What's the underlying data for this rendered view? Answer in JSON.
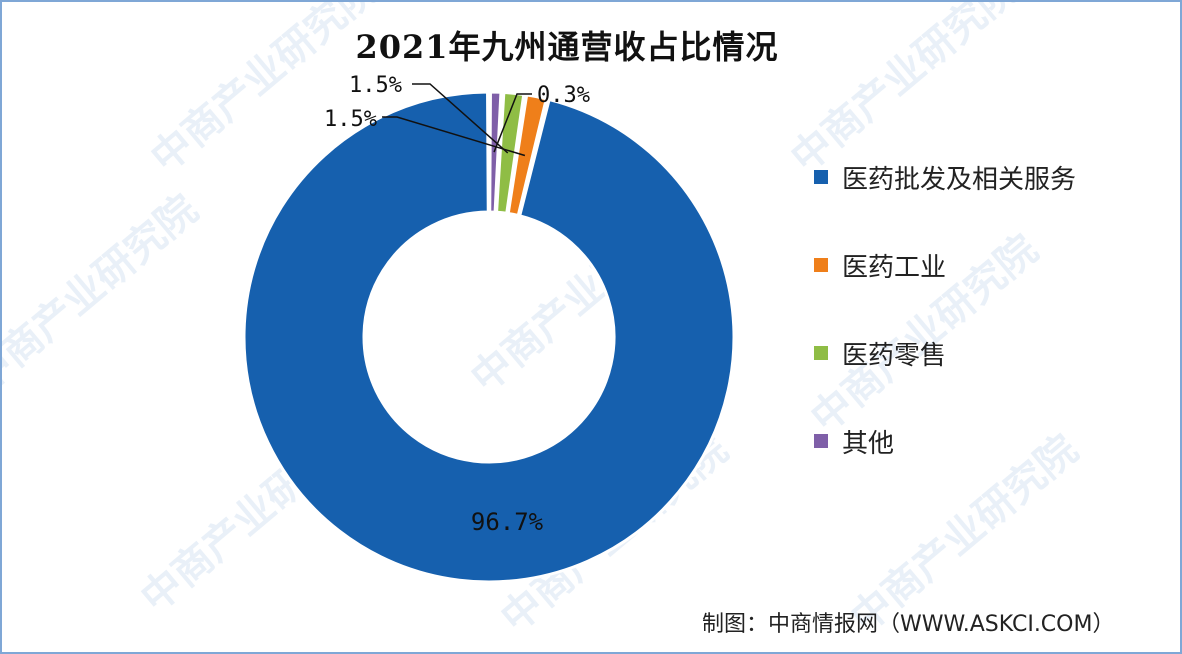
{
  "chart_data": {
    "type": "pie",
    "title": "2021年九州通营收占比情况",
    "donut": true,
    "slices": [
      {
        "label": "医药批发及相关服务",
        "value": 96.7,
        "display": "96.7%",
        "color": "#1660ae"
      },
      {
        "label": "医药工业",
        "value": 1.5,
        "display": "1.5%",
        "color": "#ef7f1a"
      },
      {
        "label": "医药零售",
        "value": 1.5,
        "display": "1.5%",
        "color": "#8fbd45"
      },
      {
        "label": "其他",
        "value": 0.3,
        "display": "0.3%",
        "color": "#7f5fa8"
      }
    ],
    "legend_position": "right"
  },
  "source": "制图：中商情报网（WWW.ASKCI.COM）",
  "watermark": "中商产业研究院"
}
